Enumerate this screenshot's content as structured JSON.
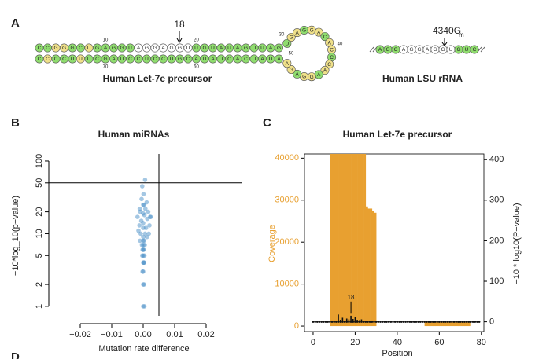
{
  "panel_labels": [
    "A",
    "B",
    "C",
    "D"
  ],
  "panel_a": {
    "let7e": {
      "title": "Human Let-7e precursor",
      "top": [
        "C",
        "C",
        "G",
        "G",
        "G",
        "C",
        "U",
        "G",
        "A",
        "G",
        "G",
        "U",
        "A",
        "G",
        "G",
        "A",
        "G",
        "G",
        "U",
        "U",
        "G",
        "U",
        "A",
        "U",
        "A",
        "G",
        "U",
        "U",
        "A",
        "G"
      ],
      "bottom": [
        "C",
        "C",
        "C",
        "C",
        "U",
        "U",
        "U",
        "C",
        "G",
        "A",
        "U",
        "C",
        "C",
        "U",
        "C",
        "C",
        "U",
        "G",
        "C",
        "A",
        "U",
        "A",
        "U",
        "C",
        "A",
        "C",
        "U",
        "A",
        "U",
        "A"
      ],
      "loop": [
        "U",
        "G",
        "A",
        "G",
        "G",
        "A",
        "C",
        "A",
        "C",
        "C",
        "C",
        "A",
        "A",
        "G",
        "G",
        "A",
        "G",
        "A"
      ],
      "positions": [
        "10",
        "18",
        "20",
        "30",
        "40",
        "50",
        "60",
        "70"
      ]
    },
    "lsu": {
      "title": "Human LSU rRNA",
      "sequence": [
        "A",
        "G",
        "C",
        "A",
        "G",
        "G",
        "A",
        "G",
        "G",
        "U",
        "G",
        "U",
        "C"
      ],
      "site": "4340G",
      "site_sub": "m"
    }
  },
  "chart_data": [
    {
      "type": "scatter",
      "title": "Human miRNAs",
      "x_label": "Mutation rate difference",
      "y_label": "−10*log_10(p−value)",
      "log_y": true,
      "color": "#4a90c8",
      "x": [
        0,
        0.0004,
        0,
        0.0003,
        0,
        -0.0002,
        0.0003,
        0,
        0.0002,
        -0.0003,
        0,
        0.0004,
        0,
        -0.0002,
        0.0002,
        0,
        0.0005,
        -0.0004,
        0,
        0.0003,
        -0.001,
        0.0012,
        0,
        -0.0008,
        0.0006,
        0.0018,
        -0.0015,
        0,
        0.0009,
        -0.0012,
        0.002,
        0,
        -0.0006,
        0.0013,
        0.0024,
        -0.0018,
        0.0004,
        0,
        -0.0009,
        0.0016,
        0.0007,
        -0.0011,
        0,
        0.0003,
        0.0011,
        -0.0005,
        0.0022,
        0.0001,
        -0.0003,
        0.0006
      ],
      "y": [
        1,
        1,
        2,
        2,
        3,
        3,
        4,
        4,
        4,
        5,
        5,
        5,
        6,
        6,
        6,
        7,
        7,
        7,
        8,
        8,
        8,
        9,
        9,
        10,
        10,
        10,
        11,
        12,
        12,
        13,
        13,
        14,
        15,
        16,
        17,
        17,
        18,
        19,
        20,
        20,
        22,
        22,
        25,
        25,
        27,
        30,
        17,
        35,
        45,
        55
      ],
      "xlim": [
        -0.03,
        0.03125
      ],
      "ylim": [
        0.74,
        125
      ],
      "xticks": [
        {
          "value": -0.02,
          "label": "−0.02"
        },
        {
          "value": -0.01,
          "label": "−0.01"
        },
        {
          "value": 0,
          "label": "0.00"
        },
        {
          "value": 0.01,
          "label": "0.01"
        },
        {
          "value": 0.02,
          "label": "0.02"
        }
      ],
      "yticks": [
        1,
        2,
        5,
        10,
        20,
        50,
        100
      ],
      "vline": 0.005,
      "hline": 50
    },
    {
      "type": "combo",
      "title": "Human Let-7e precursor",
      "x_label": "Position",
      "y_label": "Coverage",
      "y2_label": "−10 * log10(P−value)",
      "x": [
        0,
        1,
        2,
        3,
        4,
        5,
        6,
        7,
        8,
        9,
        10,
        11,
        12,
        13,
        14,
        15,
        16,
        17,
        18,
        19,
        20,
        21,
        22,
        23,
        24,
        25,
        26,
        27,
        28,
        29,
        30,
        31,
        32,
        33,
        34,
        35,
        36,
        37,
        38,
        39,
        40,
        41,
        42,
        43,
        44,
        45,
        46,
        47,
        48,
        49,
        50,
        51,
        52,
        53,
        54,
        55,
        56,
        57,
        58,
        59,
        60,
        61,
        62,
        63,
        64,
        65,
        66,
        67,
        68,
        69,
        70,
        71,
        72,
        73,
        74,
        75,
        76,
        77,
        78,
        79
      ],
      "series": [
        {
          "name": "Coverage",
          "type": "bar",
          "color": "#e8a030",
          "values": [
            0,
            0,
            0,
            0,
            0,
            0,
            0,
            0,
            41000,
            41000,
            41000,
            41000,
            41000,
            41000,
            41000,
            41000,
            41000,
            41000,
            41000,
            41000,
            41000,
            41000,
            41000,
            41000,
            41000,
            28500,
            28000,
            28000,
            27500,
            27000,
            0,
            0,
            0,
            0,
            0,
            0,
            0,
            0,
            0,
            0,
            0,
            0,
            0,
            0,
            0,
            0,
            0,
            0,
            0,
            0,
            0,
            0,
            0,
            1000,
            1000,
            1000,
            1000,
            1000,
            1000,
            1000,
            1000,
            1000,
            1000,
            1000,
            1000,
            1000,
            1000,
            1000,
            1000,
            1000,
            1000,
            1000,
            1000,
            1000,
            1000,
            0,
            0,
            0,
            0,
            0
          ]
        },
        {
          "name": "−10 * log10(P−value)",
          "type": "points",
          "axis": "y2",
          "color": "#111111",
          "values": [
            0,
            0,
            0,
            0,
            0,
            0,
            0,
            0,
            0,
            0,
            0,
            0,
            18,
            5,
            10,
            3,
            8,
            6,
            15,
            7,
            12,
            5,
            4,
            6,
            2,
            0,
            0,
            0,
            0,
            0,
            0,
            0,
            0,
            0,
            0,
            0,
            0,
            0,
            0,
            0,
            0,
            0,
            0,
            0,
            0,
            0,
            0,
            0,
            0,
            0,
            0,
            0,
            0,
            0,
            0,
            0,
            0,
            0,
            0,
            0,
            0,
            0,
            0,
            0,
            0,
            0,
            0,
            0,
            0,
            0,
            0,
            0,
            0,
            0,
            0,
            0,
            0,
            0,
            0,
            0
          ]
        }
      ],
      "annotations": [
        {
          "text": "18",
          "x": 18
        }
      ],
      "xlim": [
        -4.1,
        81.2
      ],
      "ylim": [
        -1300,
        41000
      ],
      "y2lim": [
        -24,
        414
      ],
      "xticks": [
        0,
        20,
        40,
        60,
        80
      ],
      "yticks": [
        0,
        10000,
        20000,
        30000,
        40000
      ],
      "y2ticks": [
        0,
        100,
        200,
        300,
        400
      ]
    }
  ]
}
